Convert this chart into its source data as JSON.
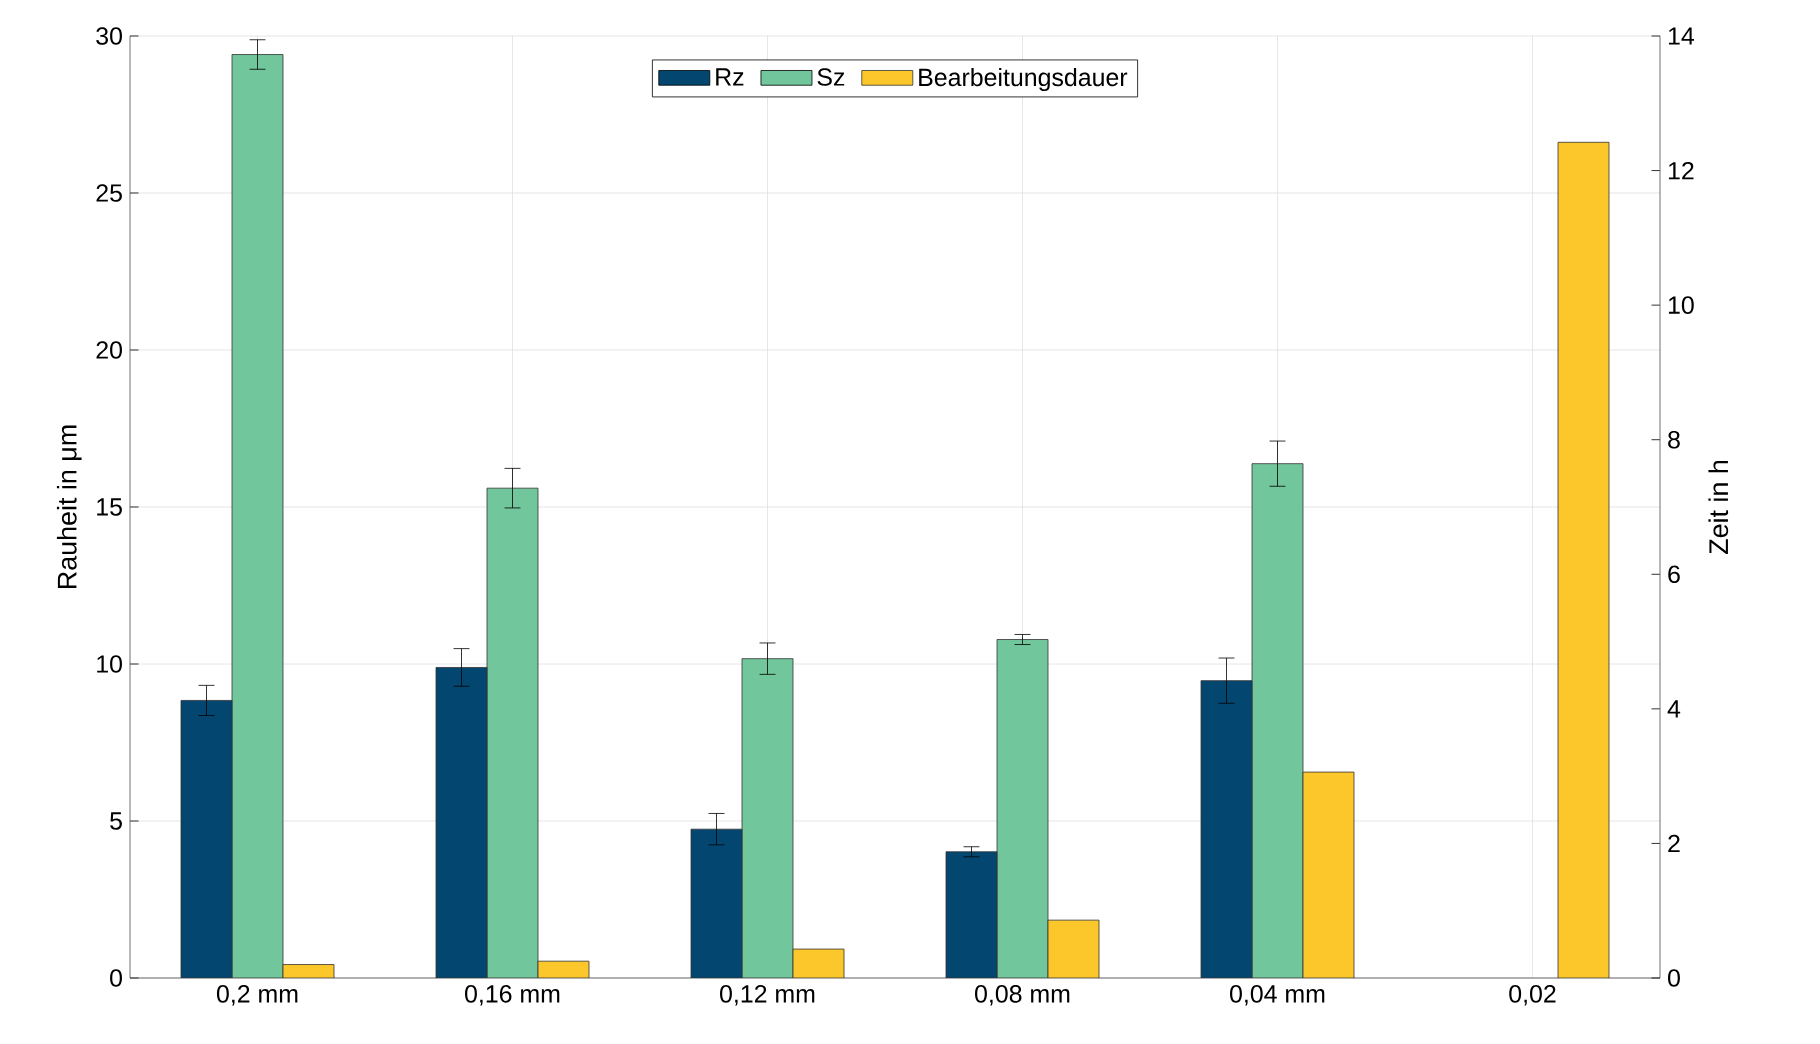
{
  "chart_data": {
    "type": "bar",
    "ylabel": "Rauheit in μm",
    "y2label": "Zeit in h",
    "categories": [
      "0,2 mm",
      "0,16 mm",
      "0,12 mm",
      "0,08 mm",
      "0,04 mm",
      "0,02"
    ],
    "series": [
      {
        "name": "Rz",
        "color": "#03466f",
        "values": [
          8.84,
          9.89,
          4.74,
          4.02,
          9.47,
          null
        ],
        "errors": [
          0.48,
          0.6,
          0.5,
          0.16,
          0.72,
          null
        ]
      },
      {
        "name": "Sz",
        "color": "#72c69b",
        "values": [
          29.41,
          15.6,
          10.17,
          10.78,
          16.38,
          null
        ],
        "errors": [
          0.47,
          0.63,
          0.5,
          0.16,
          0.72,
          null
        ]
      },
      {
        "name": "Bearbeitungsdauer",
        "color": "#fcc72a",
        "axis": "y2",
        "values": [
          0.2,
          0.25,
          0.43,
          0.86,
          3.06,
          12.42
        ]
      }
    ],
    "ylim": [
      0,
      30
    ],
    "yticks": [
      0,
      5,
      10,
      15,
      20,
      25,
      30
    ],
    "y2lim": [
      0,
      14
    ],
    "y2ticks": [
      0,
      2,
      4,
      6,
      8,
      10,
      12,
      14
    ],
    "grid": true,
    "legend": "top"
  }
}
